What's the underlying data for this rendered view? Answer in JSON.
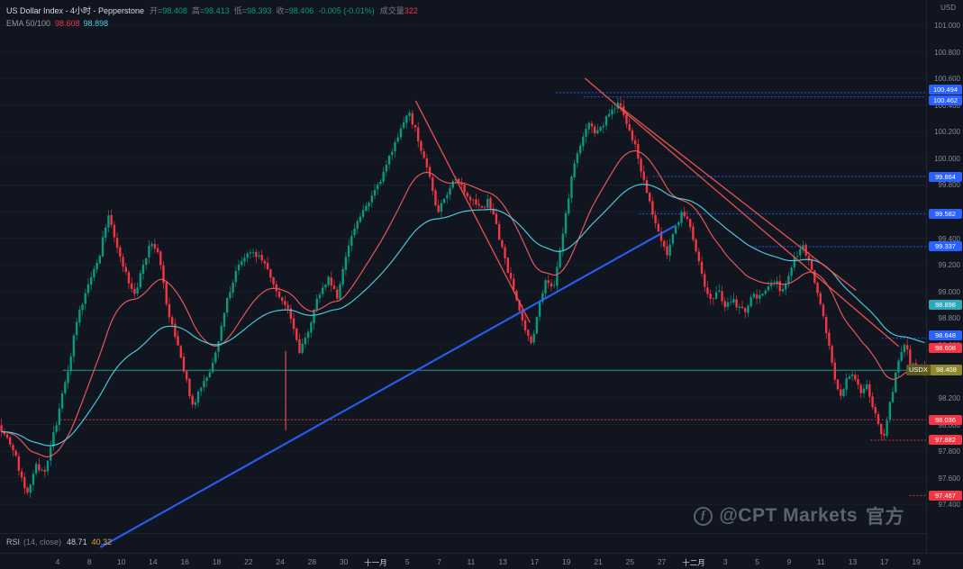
{
  "header": {
    "symbol_title": "US Dollar Index - 4小时 - Pepperstone",
    "ohlc": [
      {
        "k": "开=",
        "v": "98.408"
      },
      {
        "k": "高=",
        "v": "98.413"
      },
      {
        "k": "低=",
        "v": "98.393"
      },
      {
        "k": "收=",
        "v": "98.406"
      }
    ],
    "change": "-0.005 (-0.01%)",
    "volume_label": "成交量",
    "volume_value": "322",
    "ema_label": "EMA 50/100",
    "ema_v1": "98.608",
    "ema_v2": "98.898"
  },
  "axis_right": {
    "currency": "USD"
  },
  "rsi": {
    "label": "RSI",
    "params": "(14, close)",
    "v1": "48.71",
    "v2": "40.32"
  },
  "watermark": {
    "logo": "ƒ",
    "handle": "@CPT Markets",
    "suffix": "官方"
  },
  "colors": {
    "up": "#089981",
    "down": "#f23645",
    "ema_fast": "#f05a60",
    "ema_slow": "#4dd0e1",
    "trend_blue": "#2962ff",
    "trend_red": "#ef5350",
    "level_blue": "#2962ff",
    "level_red": "#f23645",
    "level_teal": "#2a9d8f",
    "last_badge_bg": "#8f892e"
  },
  "chart_data": {
    "type": "candlestick",
    "symbol": "USDX",
    "title": "US Dollar Index",
    "timeframe": "4小时",
    "broker": "Pepperstone",
    "summary": {
      "open": 98.408,
      "high": 98.413,
      "low": 98.393,
      "close": 98.406,
      "change": "-0.005 (-0.01%)",
      "volume": 322
    },
    "ema_values": {
      "ema50": 98.608,
      "ema100": 98.898
    },
    "rsi_values": {
      "rsi": 48.71,
      "signal": 40.32
    },
    "price_range": {
      "min": 97.185,
      "max": 101.19
    },
    "y_ticks": [
      101.0,
      100.8,
      100.6,
      100.4,
      100.2,
      100.0,
      99.8,
      99.6,
      99.4,
      99.2,
      99.0,
      98.8,
      98.6,
      98.4,
      98.2,
      98.0,
      97.8,
      97.6,
      97.4
    ],
    "x_labels": [
      "4",
      "8",
      "10",
      "14",
      "16",
      "18",
      "22",
      "24",
      "28",
      "30",
      "十一月",
      "5",
      "7",
      "11",
      "13",
      "17",
      "19",
      "21",
      "25",
      "27",
      "十二月",
      "3",
      "5",
      "9",
      "11",
      "13",
      "17",
      "19"
    ],
    "price_path": [
      [
        0,
        98.0
      ],
      [
        5,
        97.95
      ],
      [
        18,
        97.78
      ],
      [
        30,
        97.47
      ],
      [
        42,
        97.7
      ],
      [
        52,
        97.62
      ],
      [
        62,
        97.95
      ],
      [
        75,
        98.35
      ],
      [
        88,
        98.8
      ],
      [
        100,
        99.05
      ],
      [
        112,
        99.28
      ],
      [
        122,
        99.58
      ],
      [
        130,
        99.38
      ],
      [
        140,
        99.15
      ],
      [
        150,
        98.95
      ],
      [
        160,
        99.18
      ],
      [
        168,
        99.35
      ],
      [
        178,
        99.28
      ],
      [
        188,
        98.85
      ],
      [
        198,
        98.6
      ],
      [
        208,
        98.35
      ],
      [
        216,
        98.12
      ],
      [
        226,
        98.32
      ],
      [
        236,
        98.42
      ],
      [
        246,
        98.7
      ],
      [
        256,
        99.0
      ],
      [
        268,
        99.22
      ],
      [
        280,
        99.3
      ],
      [
        292,
        99.26
      ],
      [
        302,
        99.12
      ],
      [
        312,
        98.95
      ],
      [
        322,
        98.85
      ],
      [
        334,
        98.55
      ],
      [
        344,
        98.72
      ],
      [
        356,
        98.98
      ],
      [
        366,
        99.1
      ],
      [
        376,
        98.96
      ],
      [
        386,
        99.28
      ],
      [
        396,
        99.48
      ],
      [
        406,
        99.62
      ],
      [
        416,
        99.72
      ],
      [
        426,
        99.85
      ],
      [
        436,
        100.05
      ],
      [
        446,
        100.22
      ],
      [
        456,
        100.34
      ],
      [
        464,
        100.18
      ],
      [
        472,
        100.02
      ],
      [
        480,
        99.82
      ],
      [
        488,
        99.58
      ],
      [
        496,
        99.72
      ],
      [
        506,
        99.84
      ],
      [
        514,
        99.78
      ],
      [
        524,
        99.68
      ],
      [
        534,
        99.62
      ],
      [
        544,
        99.68
      ],
      [
        554,
        99.45
      ],
      [
        564,
        99.18
      ],
      [
        574,
        98.95
      ],
      [
        584,
        98.72
      ],
      [
        592,
        98.62
      ],
      [
        600,
        98.92
      ],
      [
        608,
        99.08
      ],
      [
        616,
        99.0
      ],
      [
        626,
        99.42
      ],
      [
        636,
        99.85
      ],
      [
        646,
        100.12
      ],
      [
        654,
        100.28
      ],
      [
        662,
        100.18
      ],
      [
        670,
        100.26
      ],
      [
        680,
        100.33
      ],
      [
        688,
        100.42
      ],
      [
        696,
        100.28
      ],
      [
        704,
        100.15
      ],
      [
        712,
        99.95
      ],
      [
        718,
        99.78
      ],
      [
        726,
        99.6
      ],
      [
        734,
        99.42
      ],
      [
        742,
        99.28
      ],
      [
        750,
        99.45
      ],
      [
        758,
        99.58
      ],
      [
        766,
        99.52
      ],
      [
        774,
        99.32
      ],
      [
        782,
        99.08
      ],
      [
        790,
        98.92
      ],
      [
        798,
        99.02
      ],
      [
        806,
        98.88
      ],
      [
        814,
        98.94
      ],
      [
        822,
        98.88
      ],
      [
        830,
        98.85
      ],
      [
        838,
        98.98
      ],
      [
        846,
        98.95
      ],
      [
        854,
        99.05
      ],
      [
        862,
        99.08
      ],
      [
        870,
        99.0
      ],
      [
        878,
        99.15
      ],
      [
        886,
        99.28
      ],
      [
        894,
        99.33
      ],
      [
        902,
        99.18
      ],
      [
        910,
        98.98
      ],
      [
        918,
        98.72
      ],
      [
        926,
        98.42
      ],
      [
        934,
        98.22
      ],
      [
        940,
        98.32
      ],
      [
        946,
        98.4
      ],
      [
        952,
        98.33
      ],
      [
        958,
        98.25
      ],
      [
        964,
        98.3
      ],
      [
        970,
        98.15
      ],
      [
        976,
        98.02
      ],
      [
        982,
        97.9
      ],
      [
        988,
        98.1
      ],
      [
        994,
        98.3
      ],
      [
        1000,
        98.52
      ],
      [
        1006,
        98.62
      ],
      [
        1012,
        98.45
      ],
      [
        1020,
        98.41
      ],
      [
        1028,
        98.41
      ]
    ],
    "candles": {
      "count": 320,
      "seed": 7
    },
    "levels": [
      {
        "price": 100.494,
        "color": "#2962ff",
        "from": 0.6
      },
      {
        "price": 100.462,
        "color": "#2962ff",
        "from": 0.63
      },
      {
        "price": 99.864,
        "color": "#2962ff",
        "from": 0.705
      },
      {
        "price": 99.582,
        "color": "#2962ff",
        "from": 0.69
      },
      {
        "price": 99.337,
        "color": "#2962ff",
        "from": 0.815
      },
      {
        "price": 98.648,
        "color": "#2962ff",
        "from": 0.952
      },
      {
        "price": 98.408,
        "color": "#2a9d8f",
        "from": 0.068,
        "style": "solid"
      },
      {
        "price": 98.036,
        "color": "#f23645",
        "from": 0.065
      },
      {
        "price": 97.882,
        "color": "#f23645",
        "from": 0.94
      },
      {
        "price": 97.467,
        "color": "#f23645",
        "from": 0.982
      }
    ],
    "axis_badges": [
      {
        "price": 100.494,
        "color": "#2962ff",
        "dy": -3
      },
      {
        "price": 100.462,
        "color": "#2962ff",
        "dy": 4
      },
      {
        "price": 99.864,
        "color": "#2962ff",
        "dy": 0
      },
      {
        "price": 99.582,
        "color": "#2962ff",
        "dy": 0
      },
      {
        "price": 99.337,
        "color": "#2962ff",
        "dy": 0
      },
      {
        "price": 98.898,
        "color": "#2da9bc",
        "dy": 0
      },
      {
        "price": 98.648,
        "color": "#2962ff",
        "dy": -3
      },
      {
        "price": 98.608,
        "color": "#f23645",
        "dy": 5
      },
      {
        "price": 98.036,
        "color": "#f23645",
        "dy": 0
      },
      {
        "price": 97.882,
        "color": "#f23645",
        "dy": 0
      },
      {
        "price": 97.467,
        "color": "#f23645",
        "dy": 0
      }
    ],
    "last_price": {
      "symbol": "USDX",
      "value": "98.408",
      "value_num": 98.408
    },
    "trendlines": [
      {
        "x1": 0.109,
        "p1": 97.08,
        "x2": 0.728,
        "p2": 99.49,
        "color": "#2962ff",
        "width": 2.2
      },
      {
        "x1": 0.449,
        "p1": 100.43,
        "x2": 0.572,
        "p2": 98.77,
        "color": "#ef5350",
        "width": 1.4
      },
      {
        "x1": 0.632,
        "p1": 100.6,
        "x2": 0.97,
        "p2": 98.59,
        "color": "#ef5350",
        "width": 1.4
      },
      {
        "x1": 0.669,
        "p1": 100.39,
        "x2": 0.924,
        "p2": 99.01,
        "color": "#ef5350",
        "width": 1.4
      },
      {
        "x1": 0.3085,
        "p1": 98.55,
        "x2": 0.3085,
        "p2": 97.96,
        "color": "#ef5350",
        "width": 1.2
      }
    ]
  }
}
